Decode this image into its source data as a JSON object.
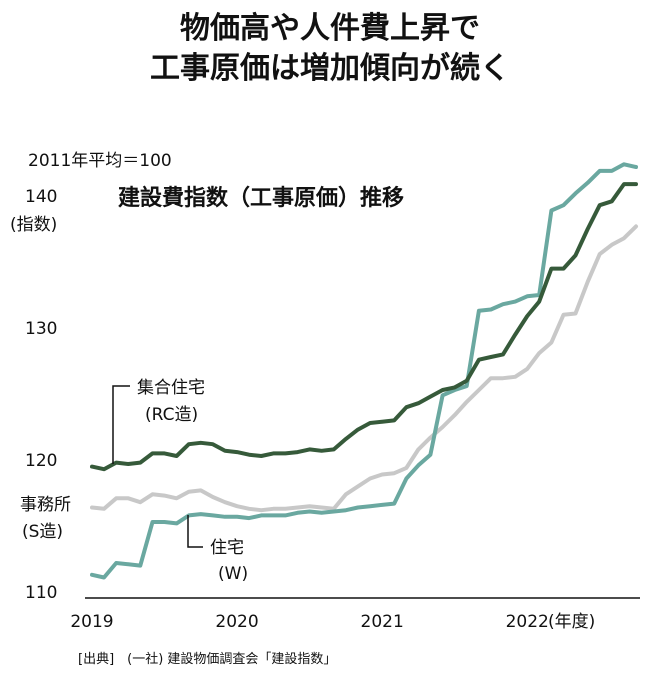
{
  "title": {
    "line1": "物価高や人件費上昇で",
    "line2": "工事原価は増加傾向が続く"
  },
  "chart_data": {
    "type": "line",
    "title": "建設費指数（工事原価）推移",
    "base_note": "2011年平均＝100",
    "ylabel": "(指数)",
    "xlabel": "(年度)",
    "ylim": [
      110,
      142
    ],
    "yticks": [
      "110",
      "120",
      "130",
      "140"
    ],
    "xticks": [
      {
        "label": "2019",
        "x": 2019.0
      },
      {
        "label": "2020",
        "x": 2020.0
      },
      {
        "label": "2021",
        "x": 2021.0
      },
      {
        "label": "2022",
        "x": 2022.0
      }
    ],
    "x": [
      2019.0,
      2019.083,
      2019.167,
      2019.25,
      2019.333,
      2019.417,
      2019.5,
      2019.583,
      2019.667,
      2019.75,
      2019.833,
      2019.917,
      2020.0,
      2020.083,
      2020.167,
      2020.25,
      2020.333,
      2020.417,
      2020.5,
      2020.583,
      2020.667,
      2020.75,
      2020.833,
      2020.917,
      2021.0,
      2021.083,
      2021.167,
      2021.25,
      2021.333,
      2021.417,
      2021.5,
      2021.583,
      2021.667,
      2021.75,
      2021.833,
      2021.917,
      2022.0,
      2022.083,
      2022.167,
      2022.25,
      2022.333,
      2022.417,
      2022.5,
      2022.583,
      2022.667,
      2022.75
    ],
    "series": [
      {
        "name": "集合住宅(RC造)",
        "label_line1": "集合住宅",
        "label_line2": "(RC造)",
        "color": "#365a3a",
        "values": [
          119.5,
          119.3,
          119.8,
          119.7,
          119.8,
          120.5,
          120.5,
          120.3,
          121.2,
          121.3,
          121.2,
          120.7,
          120.6,
          120.4,
          120.3,
          120.5,
          120.5,
          120.6,
          120.8,
          120.7,
          120.8,
          121.6,
          122.3,
          122.8,
          122.9,
          123.0,
          124.0,
          124.3,
          124.8,
          125.3,
          125.5,
          126.0,
          127.6,
          127.8,
          128.0,
          129.5,
          130.9,
          132.0,
          134.5,
          134.5,
          135.5,
          137.5,
          139.3,
          139.6,
          140.9,
          140.9
        ]
      },
      {
        "name": "事務所(S造)",
        "label_line1": "事務所",
        "label_line2": "(S造)",
        "color": "#c8c8c8",
        "values": [
          116.4,
          116.3,
          117.1,
          117.1,
          116.8,
          117.4,
          117.3,
          117.1,
          117.6,
          117.7,
          117.2,
          116.8,
          116.5,
          116.3,
          116.2,
          116.3,
          116.3,
          116.4,
          116.5,
          116.4,
          116.3,
          117.4,
          118.0,
          118.6,
          118.9,
          119.0,
          119.4,
          120.8,
          121.7,
          122.5,
          123.4,
          124.4,
          125.3,
          126.2,
          126.2,
          126.3,
          126.9,
          128.1,
          128.9,
          131.0,
          131.1,
          133.5,
          135.6,
          136.3,
          136.8,
          137.7
        ]
      },
      {
        "name": "住宅(W)",
        "label_line1": "住宅",
        "label_line2": "(W)",
        "color": "#6aa8a0",
        "values": [
          111.3,
          111.1,
          112.2,
          112.1,
          112.0,
          115.3,
          115.3,
          115.2,
          115.8,
          115.9,
          115.8,
          115.7,
          115.7,
          115.6,
          115.8,
          115.8,
          115.8,
          116.0,
          116.1,
          116.0,
          116.1,
          116.2,
          116.4,
          116.5,
          116.6,
          116.7,
          118.6,
          119.6,
          120.4,
          124.9,
          125.3,
          125.6,
          131.3,
          131.4,
          131.8,
          132.0,
          132.4,
          132.5,
          138.9,
          139.3,
          140.2,
          141.0,
          141.9,
          141.9,
          142.4,
          142.2
        ]
      }
    ]
  },
  "source": "[出典]　(一社) 建設物価調査会「建設指数」"
}
